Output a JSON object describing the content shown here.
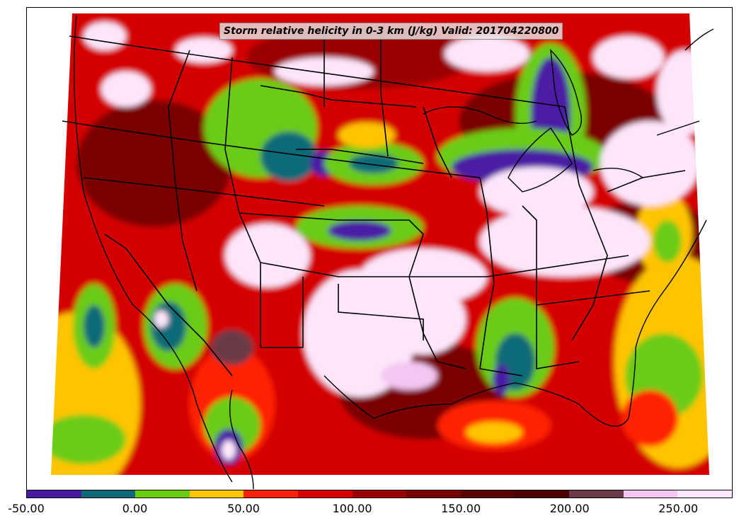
{
  "title": "Storm relative helicity in 0-3 km (J/kg) Valid: 201704220800",
  "colorbar": {
    "colors": [
      "#4b1aa4",
      "#0f6a78",
      "#6bcc12",
      "#ffc400",
      "#ff2200",
      "#d40000",
      "#9a0000",
      "#7a0000",
      "#5a0000",
      "#4a0000",
      "#6b3a46",
      "#f4c6f2",
      "#fde6fb"
    ],
    "tick_labels": [
      "-50.00",
      "0.00",
      "50.00",
      "100.00",
      "150.00",
      "200.00",
      "250.00"
    ],
    "min": -50,
    "max": 275
  }
}
